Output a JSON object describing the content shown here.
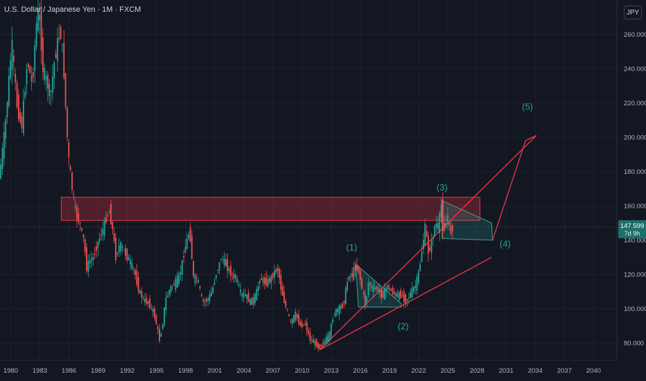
{
  "header": {
    "symbol_title": "U.S. Dollar / Japanese Yen · 1M · FXCM"
  },
  "toolbar": {
    "currency_button": "JPY"
  },
  "price_tag": {
    "value": "147.599",
    "countdown": "7d 9h"
  },
  "wave_labels": {
    "w1": "(1)",
    "w2": "(2)",
    "w3": "(3)",
    "w4": "(4)",
    "w5": "(5)"
  },
  "colors": {
    "background": "#131722",
    "grid": "#1e222d",
    "candle_up": "#26a69a",
    "candle_down": "#ef5350",
    "drawing_red": "#f23645",
    "wave_teal": "#26a69a",
    "price_line": "#5d606b",
    "price_tag_bg": "#1f6f6a",
    "text": "#b2b5be"
  },
  "chart_data": {
    "type": "candlestick",
    "title": "U.S. Dollar / Japanese Yen · 1M · FXCM",
    "x_ticks": [
      1980,
      1983,
      1986,
      1989,
      1992,
      1995,
      1998,
      2001,
      2004,
      2007,
      2010,
      2013,
      2016,
      2019,
      2022,
      2025,
      2028,
      2031,
      2034,
      2037,
      2040
    ],
    "y_ticks": [
      80,
      100,
      120,
      140,
      160,
      180,
      200,
      220,
      240,
      260
    ],
    "ylim": [
      70,
      280
    ],
    "xlim": [
      1978.9,
      2042.4
    ],
    "grid": true,
    "current_price": 147.599,
    "price_path": [
      [
        1978.9,
        176
      ],
      [
        1979.5,
        205
      ],
      [
        1980.2,
        255
      ],
      [
        1980.7,
        220
      ],
      [
        1981.2,
        205
      ],
      [
        1981.8,
        245
      ],
      [
        1982.3,
        230
      ],
      [
        1982.7,
        265
      ],
      [
        1983.0,
        275
      ],
      [
        1983.4,
        240
      ],
      [
        1983.8,
        232
      ],
      [
        1984.2,
        225
      ],
      [
        1984.6,
        245
      ],
      [
        1985.0,
        258
      ],
      [
        1985.2,
        262
      ],
      [
        1985.5,
        245
      ],
      [
        1985.8,
        210
      ],
      [
        1986.0,
        190
      ],
      [
        1986.4,
        170
      ],
      [
        1986.8,
        155
      ],
      [
        1987.2,
        150
      ],
      [
        1987.6,
        140
      ],
      [
        1987.9,
        124
      ],
      [
        1988.2,
        128
      ],
      [
        1988.6,
        130
      ],
      [
        1989.0,
        138
      ],
      [
        1989.5,
        145
      ],
      [
        1990.2,
        158
      ],
      [
        1990.6,
        145
      ],
      [
        1990.9,
        130
      ],
      [
        1991.3,
        138
      ],
      [
        1991.8,
        133
      ],
      [
        1992.3,
        128
      ],
      [
        1992.8,
        122
      ],
      [
        1993.3,
        110
      ],
      [
        1993.8,
        105
      ],
      [
        1994.3,
        103
      ],
      [
        1994.8,
        98
      ],
      [
        1995.2,
        88
      ],
      [
        1995.4,
        82
      ],
      [
        1995.7,
        90
      ],
      [
        1996.0,
        105
      ],
      [
        1996.5,
        112
      ],
      [
        1997.0,
        115
      ],
      [
        1997.5,
        120
      ],
      [
        1998.0,
        135
      ],
      [
        1998.5,
        146
      ],
      [
        1998.9,
        118
      ],
      [
        1999.3,
        118
      ],
      [
        1999.8,
        104
      ],
      [
        2000.3,
        105
      ],
      [
        2000.8,
        110
      ],
      [
        2001.3,
        122
      ],
      [
        2001.8,
        130
      ],
      [
        2002.3,
        125
      ],
      [
        2002.8,
        120
      ],
      [
        2003.3,
        118
      ],
      [
        2003.8,
        108
      ],
      [
        2004.3,
        108
      ],
      [
        2004.8,
        103
      ],
      [
        2005.3,
        108
      ],
      [
        2005.8,
        118
      ],
      [
        2006.3,
        115
      ],
      [
        2006.8,
        117
      ],
      [
        2007.3,
        122
      ],
      [
        2007.6,
        123
      ],
      [
        2007.9,
        112
      ],
      [
        2008.3,
        103
      ],
      [
        2008.9,
        92
      ],
      [
        2009.4,
        97
      ],
      [
        2009.9,
        90
      ],
      [
        2010.4,
        91
      ],
      [
        2010.9,
        82
      ],
      [
        2011.4,
        80
      ],
      [
        2011.8,
        77
      ],
      [
        2012.1,
        79
      ],
      [
        2012.5,
        82
      ],
      [
        2012.9,
        85
      ],
      [
        2013.3,
        97
      ],
      [
        2013.8,
        100
      ],
      [
        2014.3,
        102
      ],
      [
        2014.8,
        118
      ],
      [
        2015.3,
        120
      ],
      [
        2015.5,
        125
      ],
      [
        2015.9,
        122
      ],
      [
        2016.3,
        110
      ],
      [
        2016.6,
        102
      ],
      [
        2016.9,
        115
      ],
      [
        2017.3,
        112
      ],
      [
        2017.8,
        112
      ],
      [
        2018.3,
        107
      ],
      [
        2018.8,
        113
      ],
      [
        2019.3,
        110
      ],
      [
        2019.8,
        108
      ],
      [
        2020.3,
        108
      ],
      [
        2020.8,
        104
      ],
      [
        2021.3,
        110
      ],
      [
        2021.8,
        114
      ],
      [
        2022.2,
        125
      ],
      [
        2022.5,
        138
      ],
      [
        2022.8,
        150
      ],
      [
        2023.0,
        132
      ],
      [
        2023.4,
        138
      ],
      [
        2023.8,
        150
      ],
      [
        2024.1,
        148
      ],
      [
        2024.4,
        160
      ],
      [
        2024.6,
        145
      ],
      [
        2024.9,
        150
      ],
      [
        2025.1,
        155
      ],
      [
        2025.3,
        142
      ],
      [
        2025.5,
        147.599
      ]
    ],
    "annotations": {
      "resistance_zone": {
        "x": [
          1985.2,
          2028.3
        ],
        "y": [
          151.5,
          165
        ]
      },
      "channel_upper": [
        [
          2011.8,
          76
        ],
        [
          2034.1,
          201
        ]
      ],
      "channel_lower": [
        [
          2011.8,
          76
        ],
        [
          2029.5,
          130
        ]
      ],
      "wave_5_projection": [
        [
          2029.6,
          140
        ],
        [
          2033.0,
          198
        ]
      ],
      "triangle_2015": [
        [
          2015.5,
          126
        ],
        [
          2020.2,
          103
        ],
        [
          2020.2,
          101
        ],
        [
          2015.8,
          101
        ]
      ],
      "triangle_2024": [
        [
          2024.4,
          163
        ],
        [
          2029.5,
          150
        ],
        [
          2029.6,
          140
        ],
        [
          2024.4,
          141
        ]
      ],
      "wave_points": {
        "w1": [
          2015.1,
          134
        ],
        "w2": [
          2020.4,
          88
        ],
        "w3": [
          2024.4,
          169
        ],
        "w4": [
          2030.9,
          136
        ],
        "w5": [
          2033.2,
          216
        ]
      }
    }
  }
}
